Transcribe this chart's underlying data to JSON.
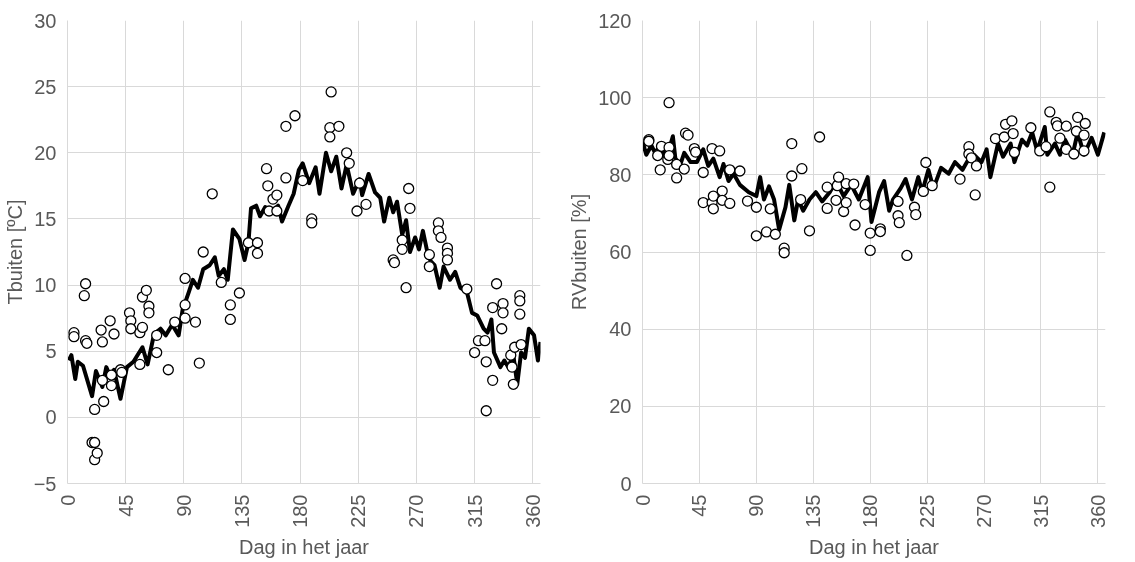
{
  "chart_data": [
    {
      "type": "scatter",
      "xlabel": "Dag in het jaar",
      "ylabel": "Tbuiten [ºC]",
      "xlim": [
        0,
        366
      ],
      "ylim": [
        -5,
        30
      ],
      "xticks": [
        0,
        45,
        90,
        135,
        180,
        225,
        270,
        315,
        360
      ],
      "yticks": [
        -5,
        0,
        5,
        10,
        15,
        20,
        25,
        30
      ],
      "grid": true,
      "series": [
        {
          "marker": "circle",
          "color": "#000000",
          "x": [
            5,
            5,
            13,
            14,
            14,
            15,
            19,
            21,
            21,
            21,
            23,
            26,
            27,
            27,
            28,
            33,
            34,
            34,
            36,
            41,
            42,
            48,
            49,
            49,
            56,
            56,
            58,
            58,
            61,
            63,
            63,
            69,
            69,
            78,
            83,
            91,
            91,
            91,
            99,
            102,
            105,
            112,
            119,
            126,
            126,
            133,
            140,
            147,
            147,
            154,
            155,
            156,
            159,
            162,
            162,
            169,
            169,
            176,
            182,
            189,
            189,
            203,
            203,
            204,
            210,
            216,
            218,
            224,
            226,
            231,
            252,
            253,
            259,
            259,
            262,
            264,
            265,
            280,
            280,
            287,
            287,
            289,
            294,
            294,
            294,
            309,
            315,
            318,
            323,
            324,
            324,
            329,
            329,
            332,
            336,
            337,
            337,
            343,
            344,
            345,
            346,
            350,
            350,
            350,
            351
          ],
          "values": [
            6.4,
            6.1,
            9.2,
            10.1,
            5.8,
            5.6,
            -1.9,
            -1.9,
            0.6,
            -3.2,
            -2.7,
            6.6,
            5.7,
            2.8,
            1.2,
            7.3,
            3.2,
            2.4,
            6.3,
            3.6,
            3.4,
            7.9,
            7.3,
            6.7,
            6.4,
            4.0,
            6.8,
            9.1,
            9.6,
            8.4,
            7.9,
            6.2,
            4.9,
            3.6,
            7.2,
            10.5,
            8.5,
            7.5,
            7.2,
            4.1,
            12.5,
            16.9,
            10.2,
            8.5,
            7.4,
            9.4,
            13.2,
            13.2,
            12.4,
            18.8,
            17.5,
            15.6,
            16.5,
            16.8,
            15.6,
            18.1,
            22.0,
            22.8,
            17.9,
            15.0,
            14.7,
            21.9,
            21.2,
            24.6,
            22.0,
            20.0,
            19.2,
            15.6,
            17.7,
            16.1,
            11.9,
            11.7,
            13.4,
            12.7,
            9.8,
            17.3,
            15.8,
            11.4,
            12.3,
            14.7,
            14.1,
            13.6,
            12.8,
            12.4,
            11.9,
            9.7,
            4.9,
            5.8,
            5.8,
            4.2,
            0.5,
            2.8,
            8.3,
            10.1,
            6.7,
            8.6,
            7.9,
            4.7,
            3.8,
            2.5,
            5.3,
            9.2,
            8.8,
            7.8,
            5.5
          ]
        },
        {
          "type": "line",
          "marker": "none",
          "color": "#000000",
          "x": [
            1,
            3,
            6,
            8,
            12,
            19,
            22,
            27,
            30,
            33,
            36,
            41,
            46,
            51,
            58,
            62,
            67,
            72,
            76,
            81,
            86,
            89,
            94,
            97,
            101,
            105,
            110,
            114,
            117,
            121,
            124,
            128,
            133,
            137,
            140,
            142,
            146,
            149,
            153,
            158,
            163,
            166,
            171,
            175,
            179,
            182,
            187,
            192,
            195,
            200,
            204,
            208,
            212,
            216,
            221,
            226,
            228,
            233,
            238,
            242,
            245,
            249,
            252,
            255,
            259,
            262,
            265,
            269,
            272,
            275,
            278,
            281,
            284,
            288,
            291,
            296,
            300,
            304,
            309,
            313,
            317,
            322,
            325,
            328,
            330,
            335,
            338,
            341,
            345,
            348,
            351,
            354,
            357,
            361,
            364,
            366
          ],
          "values": [
            4.3,
            4.7,
            2.9,
            4.2,
            3.9,
            1.6,
            3.5,
            2.3,
            3.8,
            3.1,
            3.6,
            1.4,
            3.8,
            4.2,
            5.3,
            4.0,
            6.3,
            6.7,
            6.2,
            7.0,
            6.2,
            8.1,
            9.5,
            10.4,
            9.8,
            11.2,
            11.5,
            12.1,
            10.7,
            11.2,
            10.4,
            14.2,
            13.5,
            11.9,
            13.2,
            15.8,
            16.0,
            15.2,
            15.9,
            15.5,
            16.0,
            14.8,
            16.0,
            16.9,
            18.7,
            19.2,
            17.7,
            18.9,
            16.9,
            20.0,
            18.6,
            19.7,
            17.3,
            19.1,
            16.9,
            18.0,
            16.8,
            18.4,
            17.0,
            16.6,
            14.8,
            16.6,
            15.5,
            16.3,
            13.8,
            14.9,
            12.5,
            13.6,
            12.7,
            14.1,
            12.7,
            11.8,
            11.5,
            9.8,
            11.4,
            10.4,
            11.0,
            9.8,
            9.5,
            7.9,
            7.7,
            6.7,
            6.4,
            7.4,
            4.9,
            3.8,
            4.3,
            3.8,
            4.7,
            2.5,
            4.9,
            4.5,
            6.7,
            6.2,
            4.3,
            5.7
          ]
        }
      ]
    },
    {
      "type": "scatter",
      "xlabel": "Dag in het jaar",
      "ylabel": "RVbuiten [%]",
      "xlim": [
        0,
        366
      ],
      "ylim": [
        0,
        120
      ],
      "xticks": [
        0,
        45,
        90,
        135,
        180,
        225,
        270,
        315,
        360
      ],
      "yticks": [
        0,
        20,
        40,
        60,
        80,
        100,
        120
      ],
      "grid": true,
      "series": [
        {
          "marker": "circle",
          "color": "#000000",
          "x": [
            5,
            5,
            12,
            14,
            15,
            20,
            21,
            21,
            21,
            27,
            27,
            33,
            34,
            36,
            41,
            42,
            48,
            48,
            55,
            55,
            56,
            56,
            61,
            63,
            63,
            69,
            69,
            77,
            83,
            90,
            90,
            98,
            101,
            105,
            112,
            112,
            118,
            118,
            125,
            126,
            132,
            140,
            146,
            146,
            153,
            154,
            155,
            159,
            161,
            161,
            167,
            168,
            176,
            180,
            180,
            188,
            188,
            202,
            202,
            203,
            209,
            215,
            216,
            222,
            224,
            229,
            251,
            258,
            258,
            260,
            263,
            264,
            279,
            286,
            287,
            292,
            293,
            294,
            307,
            314,
            319,
            322,
            322,
            327,
            328,
            330,
            335,
            335,
            341,
            343,
            344,
            349,
            349,
            350
          ],
          "values": [
            89.1,
            88.7,
            85,
            81.3,
            87.4,
            84,
            98.7,
            87.1,
            85,
            82.7,
            79.2,
            81.5,
            90.8,
            90.3,
            86.8,
            85.9,
            80.6,
            72.8,
            86.8,
            72.8,
            74.5,
            71.2,
            86.2,
            75.8,
            73.4,
            72.6,
            81.3,
            81,
            73.2,
            71.6,
            64.2,
            65.2,
            71.2,
            64.6,
            61,
            59.8,
            88.1,
            79.7,
            73.6,
            81.6,
            65.5,
            89.8,
            76.8,
            71.3,
            73.4,
            77.2,
            79.4,
            70.5,
            77.7,
            72.8,
            77.6,
            67,
            72.3,
            64.9,
            60.4,
            66,
            65.3,
            73.1,
            69.4,
            67.6,
            59.1,
            71.6,
            69.7,
            75.7,
            83.2,
            77.2,
            78.9,
            87.3,
            85.4,
            84.4,
            74.8,
            82.3,
            89.4,
            89.8,
            93.1,
            94,
            90.7,
            85.8,
            92.2,
            86.2,
            87.3,
            96.3,
            76.8,
            93.6,
            92.7,
            89.5,
            92.6,
            86.6,
            85.4,
            91.3,
            94.9,
            90.3,
            86.2,
            93.3
          ]
        },
        {
          "type": "line",
          "marker": "none",
          "color": "#000000",
          "x": [
            0,
            3,
            7,
            10,
            14,
            19,
            24,
            26,
            30,
            33,
            38,
            43,
            48,
            52,
            56,
            61,
            64,
            68,
            72,
            77,
            84,
            90,
            93,
            96,
            100,
            104,
            108,
            113,
            116,
            120,
            123,
            127,
            132,
            137,
            142,
            148,
            153,
            159,
            165,
            171,
            178,
            181,
            187,
            191,
            195,
            198,
            204,
            208,
            213,
            218,
            221,
            226,
            230,
            236,
            242,
            247,
            253,
            258,
            262,
            268,
            272,
            275,
            281,
            285,
            291,
            294,
            300,
            304,
            308,
            312,
            318,
            320,
            326,
            330,
            334,
            340,
            344,
            349,
            355,
            360,
            365
          ],
          "values": [
            88.6,
            85.2,
            87.6,
            85.7,
            87.6,
            84.2,
            90,
            84.2,
            82.8,
            85.7,
            83.3,
            83.3,
            86.6,
            82.3,
            84.2,
            79.4,
            82.8,
            78.4,
            80.3,
            77.4,
            75.5,
            74.5,
            79.4,
            73.6,
            77,
            73.6,
            65.8,
            71.6,
            77.4,
            68.2,
            73.6,
            70.7,
            73.6,
            75.5,
            73.1,
            75.5,
            78.4,
            74.5,
            77.4,
            73.6,
            79.4,
            67.8,
            75.5,
            78.4,
            70.7,
            73.6,
            76.5,
            78.9,
            73.6,
            79.4,
            75.5,
            81.3,
            76.5,
            81.8,
            80.3,
            83.3,
            81.3,
            84.2,
            85.2,
            83.3,
            86.6,
            79.4,
            88.1,
            84.7,
            88.1,
            83.3,
            89.1,
            87.6,
            91,
            86.2,
            92.4,
            85.2,
            88.1,
            85.2,
            89.1,
            85.2,
            91,
            85.2,
            89.6,
            85.2,
            91
          ]
        }
      ]
    }
  ]
}
